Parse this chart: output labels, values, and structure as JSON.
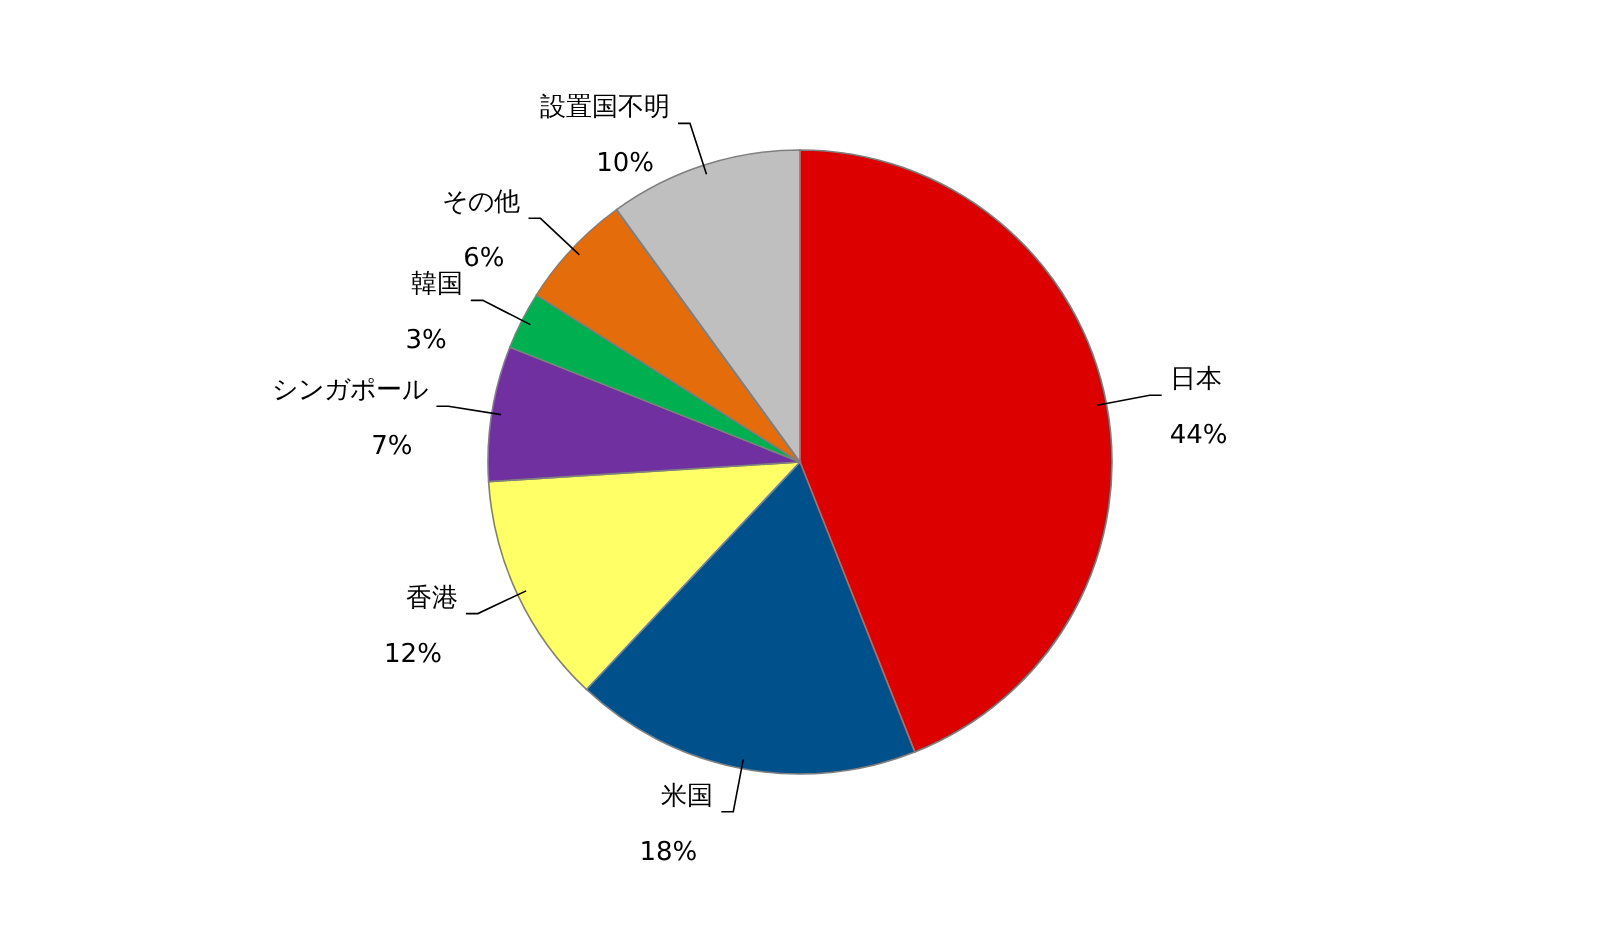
{
  "chart_data": {
    "type": "pie",
    "categories": [
      "日本",
      "米国",
      "香港",
      "シンガポール",
      "韓国",
      "その他",
      "設置国不明"
    ],
    "values": [
      44,
      18,
      12,
      7,
      3,
      6,
      10
    ],
    "value_labels": [
      "44%",
      "18%",
      "12%",
      "7%",
      "3%",
      "6%",
      "10%"
    ],
    "colors": [
      "#dd0000",
      "#00508c",
      "#ffff66",
      "#7030a0",
      "#00b050",
      "#e46c0a",
      "#bfbfbf"
    ]
  }
}
